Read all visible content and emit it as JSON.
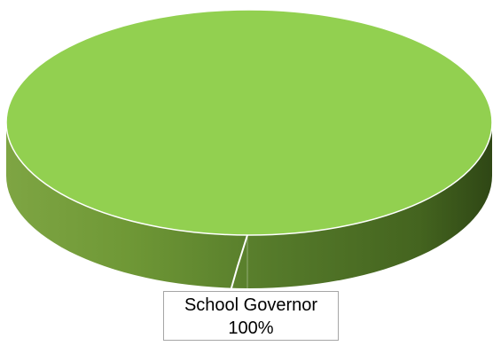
{
  "chart_data": {
    "type": "pie",
    "title": "",
    "categories": [
      "School Governor"
    ],
    "values": [
      100
    ],
    "percent_labels": [
      "100%"
    ],
    "style": "3d",
    "legend": "none",
    "colors": {
      "top": "#92d050",
      "side_light": "#7aa63e",
      "side_dark": "#3c5a1e",
      "label_border": "#a6a6a6"
    }
  }
}
